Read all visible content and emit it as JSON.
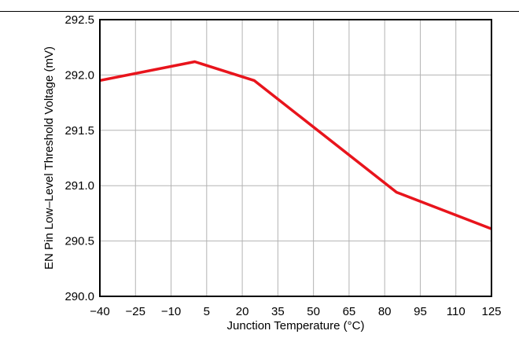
{
  "chart_data": {
    "type": "line",
    "title": "",
    "xlabel": "Junction Temperature (°C)",
    "ylabel": "EN Pin Low–Level Threshold Voltage (mV)",
    "xlim": [
      -40,
      125
    ],
    "ylim": [
      290.0,
      292.5
    ],
    "x_ticks": [
      -40,
      -25,
      -10,
      5,
      20,
      35,
      50,
      65,
      80,
      95,
      110,
      125
    ],
    "x_tick_labels": [
      "−40",
      "−25",
      "−10",
      "5",
      "20",
      "35",
      "50",
      "65",
      "80",
      "95",
      "110",
      "125"
    ],
    "y_ticks": [
      290.0,
      290.5,
      291.0,
      291.5,
      292.0,
      292.5
    ],
    "y_tick_labels": [
      "290.0",
      "290.5",
      "291.0",
      "291.5",
      "292.0",
      "292.5"
    ],
    "grid": true,
    "series": [
      {
        "color": "#e8141c",
        "x": [
          -40,
          0,
          25,
          85,
          125
        ],
        "y": [
          291.95,
          292.12,
          291.95,
          290.94,
          290.61
        ]
      }
    ]
  }
}
